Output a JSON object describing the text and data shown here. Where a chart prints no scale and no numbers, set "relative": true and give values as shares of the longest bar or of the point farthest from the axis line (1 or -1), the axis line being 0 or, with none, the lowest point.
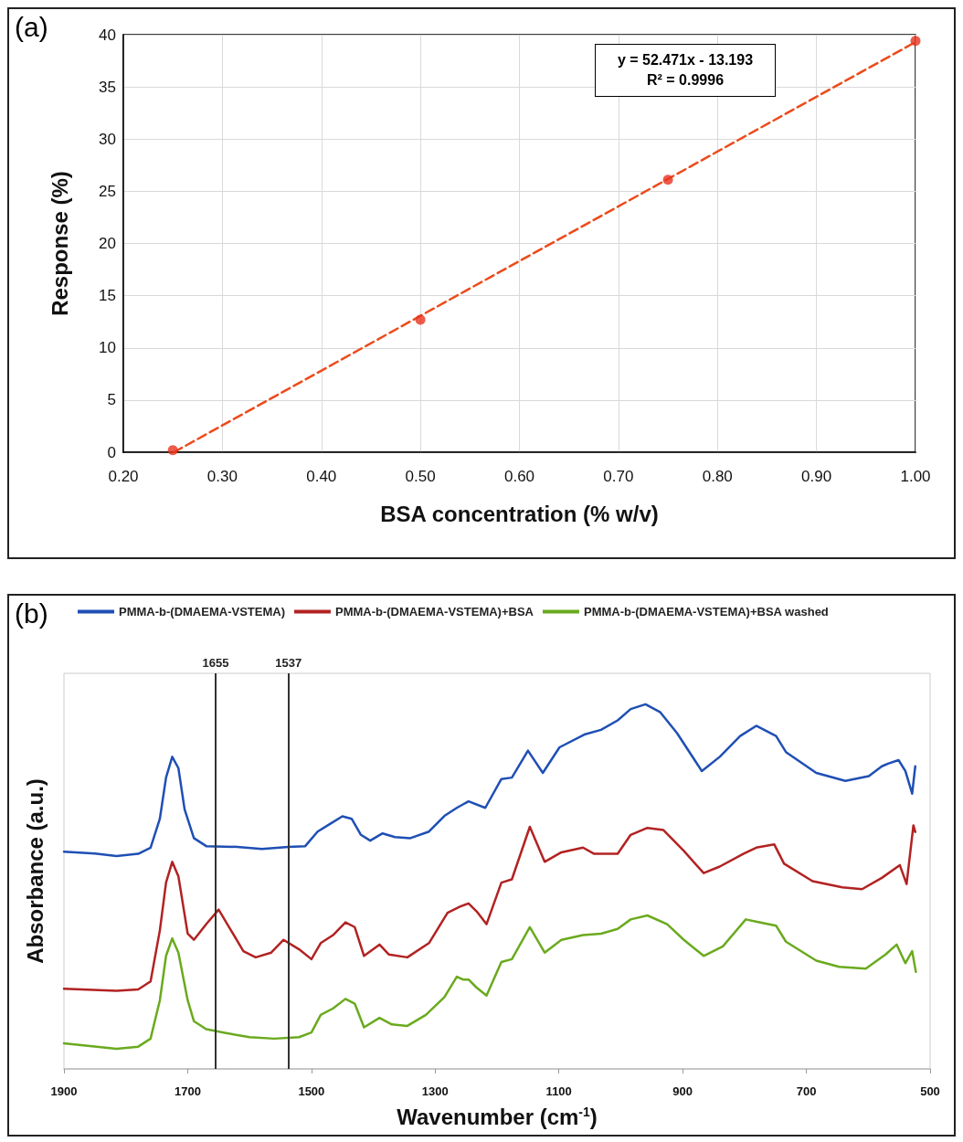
{
  "chart_data": [
    {
      "type": "scatter",
      "xlabel": "BSA concentration (% w/v)",
      "ylabel": "Response (%)",
      "annotations": [
        "(a)",
        "y = 52.471x - 13.193",
        "R² = 0.9996"
      ],
      "xlim": [
        0.2,
        1.0
      ],
      "xticks": [
        {
          "value": 0.2,
          "label": "0.20"
        },
        {
          "value": 0.3,
          "label": "0.30"
        },
        {
          "value": 0.4,
          "label": "0.40"
        },
        {
          "value": 0.5,
          "label": "0.50"
        },
        {
          "value": 0.6,
          "label": "0.60"
        },
        {
          "value": 0.7,
          "label": "0.70"
        },
        {
          "value": 0.8,
          "label": "0.80"
        },
        {
          "value": 0.9,
          "label": "0.90"
        },
        {
          "value": 1.0,
          "label": "1.00"
        }
      ],
      "ylim": [
        0,
        40
      ],
      "yticks": [
        0,
        5,
        10,
        15,
        20,
        25,
        30,
        35,
        40
      ],
      "grid": true,
      "legend": false,
      "series": [
        {
          "color": "#e8321e",
          "marker": "circle",
          "x": [
            0.25,
            0.5,
            0.75,
            1.0
          ],
          "values": [
            0.2,
            12.7,
            26.1,
            39.4
          ]
        },
        {
          "type": "line",
          "color": "#ee4a1a",
          "marker": "none",
          "line_style": "dashed",
          "x": [
            0.251,
            1.0
          ],
          "values": [
            0,
            39.3
          ]
        }
      ]
    },
    {
      "type": "line",
      "relative": true,
      "xlabel": "Wavenumber (cm$^{-1}$)",
      "ylabel": "Absorbance (a.u.)",
      "annotations": [
        "(b)"
      ],
      "xlim": [
        1900,
        500
      ],
      "xticks": [
        1900,
        1700,
        1500,
        1300,
        1100,
        900,
        700,
        500
      ],
      "grid": false,
      "legend": "top",
      "marker": "none",
      "tick_labels": "x",
      "ref_lines": [
        {
          "axis": "x",
          "value": 1655,
          "label": "1655",
          "color": "#333333"
        },
        {
          "axis": "x",
          "value": 1537,
          "label": "1537",
          "color": "#333333"
        }
      ],
      "series": [
        {
          "name": "PMMA-b-(DMAEMA-VSTEMA)",
          "color": "#1f4fb4",
          "x": [
            1900,
            1850,
            1815,
            1780,
            1760,
            1745,
            1735,
            1725,
            1715,
            1705,
            1690,
            1670,
            1620,
            1580,
            1537,
            1510,
            1490,
            1470,
            1450,
            1435,
            1420,
            1405,
            1385,
            1365,
            1340,
            1310,
            1285,
            1265,
            1246,
            1219,
            1193,
            1176,
            1150,
            1126,
            1099,
            1059,
            1032,
            1005,
            984,
            960,
            936,
            909,
            869,
            840,
            807,
            781,
            749,
            733,
            684,
            637,
            599,
            578,
            567,
            551,
            540,
            529,
            524
          ],
          "values": [
            0.596,
            0.591,
            0.584,
            0.59,
            0.607,
            0.686,
            0.799,
            0.856,
            0.825,
            0.712,
            0.633,
            0.611,
            0.609,
            0.603,
            0.609,
            0.611,
            0.651,
            0.672,
            0.693,
            0.686,
            0.642,
            0.626,
            0.646,
            0.636,
            0.633,
            0.651,
            0.694,
            0.716,
            0.734,
            0.716,
            0.795,
            0.799,
            0.873,
            0.812,
            0.882,
            0.917,
            0.93,
            0.956,
            0.987,
            1.0,
            0.978,
            0.921,
            0.817,
            0.856,
            0.913,
            0.941,
            0.913,
            0.869,
            0.812,
            0.79,
            0.803,
            0.83,
            0.838,
            0.847,
            0.817,
            0.755,
            0.83
          ]
        },
        {
          "name": "PMMA-b-(DMAEMA-VSTEMA)+BSA",
          "color": "#b22222",
          "x": [
            1900,
            1815,
            1780,
            1760,
            1745,
            1735,
            1725,
            1715,
            1700,
            1690,
            1670,
            1650,
            1630,
            1610,
            1590,
            1565,
            1545,
            1520,
            1500,
            1485,
            1465,
            1445,
            1430,
            1415,
            1390,
            1375,
            1345,
            1310,
            1280,
            1260,
            1246,
            1233,
            1217,
            1193,
            1176,
            1147,
            1123,
            1096,
            1061,
            1043,
            1005,
            984,
            957,
            931,
            898,
            866,
            840,
            802,
            781,
            752,
            736,
            690,
            642,
            610,
            578,
            549,
            538,
            527,
            524
          ],
          "values": [
            0.22,
            0.214,
            0.218,
            0.24,
            0.38,
            0.511,
            0.568,
            0.528,
            0.371,
            0.354,
            0.397,
            0.437,
            0.38,
            0.323,
            0.306,
            0.319,
            0.354,
            0.328,
            0.301,
            0.345,
            0.367,
            0.402,
            0.389,
            0.31,
            0.341,
            0.314,
            0.306,
            0.345,
            0.428,
            0.445,
            0.454,
            0.432,
            0.397,
            0.511,
            0.52,
            0.664,
            0.568,
            0.594,
            0.607,
            0.59,
            0.59,
            0.642,
            0.661,
            0.655,
            0.598,
            0.537,
            0.555,
            0.59,
            0.607,
            0.616,
            0.563,
            0.515,
            0.498,
            0.493,
            0.524,
            0.559,
            0.507,
            0.668,
            0.65
          ]
        },
        {
          "name": "PMMA-b-(DMAEMA-VSTEMA)+BSA washed",
          "color": "#6aaa1e",
          "x": [
            1900,
            1815,
            1780,
            1760,
            1745,
            1735,
            1725,
            1715,
            1700,
            1690,
            1670,
            1640,
            1600,
            1560,
            1520,
            1500,
            1485,
            1465,
            1445,
            1430,
            1415,
            1390,
            1370,
            1345,
            1315,
            1285,
            1265,
            1255,
            1246,
            1233,
            1217,
            1193,
            1176,
            1147,
            1123,
            1096,
            1061,
            1032,
            1005,
            984,
            957,
            925,
            898,
            866,
            835,
            798,
            776,
            749,
            733,
            684,
            647,
            604,
            572,
            554,
            540,
            529,
            523
          ],
          "values": [
            0.07,
            0.055,
            0.061,
            0.083,
            0.188,
            0.31,
            0.358,
            0.319,
            0.188,
            0.131,
            0.109,
            0.099,
            0.087,
            0.083,
            0.087,
            0.1,
            0.148,
            0.166,
            0.192,
            0.179,
            0.114,
            0.14,
            0.122,
            0.118,
            0.148,
            0.197,
            0.253,
            0.245,
            0.245,
            0.223,
            0.201,
            0.293,
            0.301,
            0.389,
            0.319,
            0.354,
            0.367,
            0.371,
            0.384,
            0.41,
            0.421,
            0.397,
            0.354,
            0.31,
            0.336,
            0.41,
            0.402,
            0.393,
            0.349,
            0.297,
            0.28,
            0.275,
            0.314,
            0.341,
            0.29,
            0.323,
            0.266
          ]
        }
      ]
    }
  ]
}
